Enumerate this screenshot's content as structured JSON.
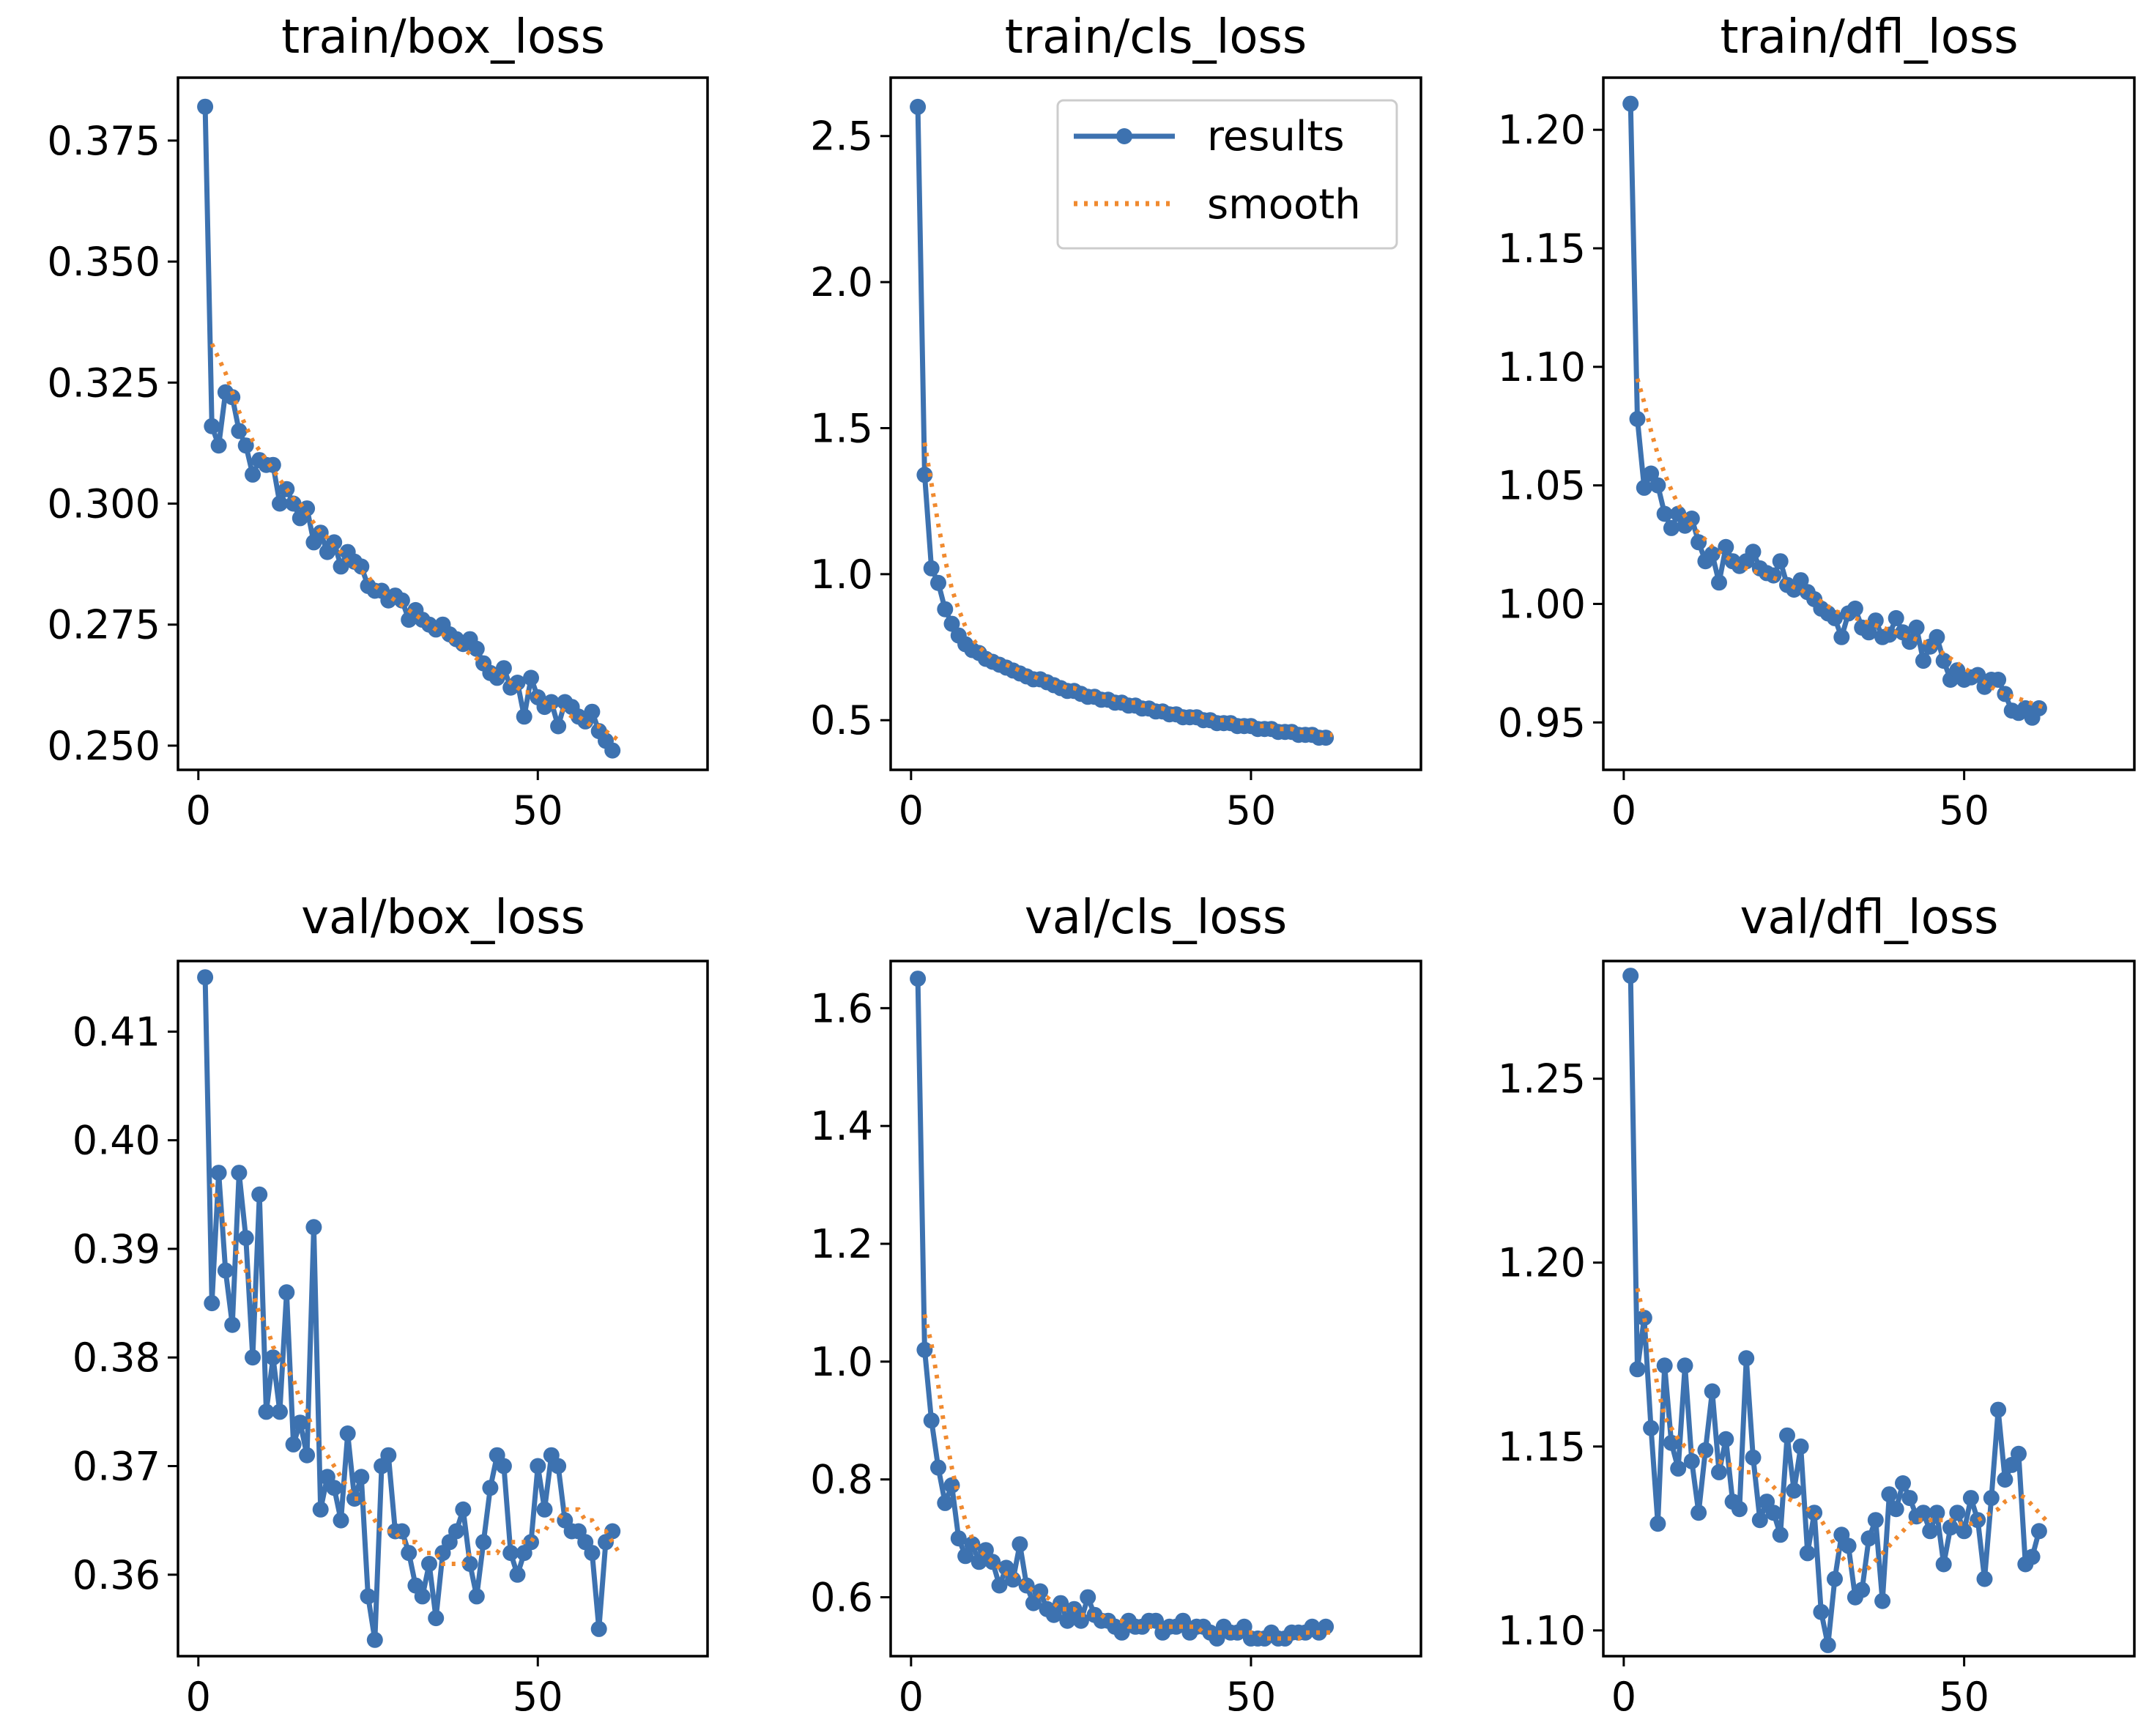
{
  "legend": {
    "results_label": "results",
    "smooth_label": "smooth"
  },
  "colors": {
    "results": "#3d72b0",
    "smooth": "#f08a2f"
  },
  "chart_data": [
    {
      "type": "line",
      "title": "train/box_loss",
      "xlim": [
        -3,
        75
      ],
      "ylim": [
        0.245,
        0.388
      ],
      "xticks": [
        0,
        50
      ],
      "yticks": [
        0.25,
        0.275,
        0.3,
        0.325,
        0.35,
        0.375
      ],
      "ytick_decimals": 3,
      "series": [
        {
          "name": "results",
          "values": [
            0.382,
            0.316,
            0.312,
            0.323,
            0.322,
            0.315,
            0.312,
            0.306,
            0.309,
            0.308,
            0.308,
            0.3,
            0.303,
            0.3,
            0.297,
            0.299,
            0.292,
            0.294,
            0.29,
            0.292,
            0.287,
            0.29,
            0.288,
            0.287,
            0.283,
            0.282,
            0.282,
            0.28,
            0.281,
            0.28,
            0.276,
            0.278,
            0.276,
            0.275,
            0.274,
            0.275,
            0.273,
            0.272,
            0.271,
            0.272,
            0.27,
            0.267,
            0.265,
            0.264,
            0.266,
            0.262,
            0.263,
            0.256,
            0.264,
            0.26,
            0.258,
            0.259,
            0.254,
            0.259,
            0.258,
            0.256,
            0.255,
            0.257,
            0.253,
            0.251,
            0.249
          ]
        },
        {
          "name": "smooth",
          "values": [
            0.333,
            0.33,
            0.327,
            0.323,
            0.319,
            0.316,
            0.313,
            0.311,
            0.309,
            0.307,
            0.305,
            0.303,
            0.301,
            0.3,
            0.298,
            0.296,
            0.294,
            0.293,
            0.291,
            0.29,
            0.288,
            0.287,
            0.286,
            0.285,
            0.283,
            0.282,
            0.281,
            0.28,
            0.279,
            0.278,
            0.277,
            0.276,
            0.275,
            0.274,
            0.273,
            0.272,
            0.271,
            0.27,
            0.269,
            0.268,
            0.267,
            0.266,
            0.265,
            0.264,
            0.263,
            0.262,
            0.261,
            0.261,
            0.26,
            0.259,
            0.258,
            0.258,
            0.257,
            0.256,
            0.256,
            0.255,
            0.254,
            0.254,
            0.253,
            0.252,
            0.251
          ]
        }
      ]
    },
    {
      "type": "line",
      "title": "train/cls_loss",
      "xlim": [
        -3,
        75
      ],
      "ylim": [
        0.33,
        2.7
      ],
      "xticks": [
        0,
        50
      ],
      "yticks": [
        0.5,
        1.0,
        1.5,
        2.0,
        2.5
      ],
      "ytick_decimals": 1,
      "series": [
        {
          "name": "results",
          "values": [
            2.6,
            1.34,
            1.02,
            0.97,
            0.88,
            0.83,
            0.79,
            0.76,
            0.74,
            0.73,
            0.71,
            0.7,
            0.69,
            0.68,
            0.67,
            0.66,
            0.65,
            0.64,
            0.64,
            0.63,
            0.62,
            0.61,
            0.6,
            0.6,
            0.59,
            0.58,
            0.58,
            0.57,
            0.57,
            0.56,
            0.56,
            0.55,
            0.55,
            0.54,
            0.54,
            0.53,
            0.53,
            0.52,
            0.52,
            0.51,
            0.51,
            0.51,
            0.5,
            0.5,
            0.49,
            0.49,
            0.49,
            0.48,
            0.48,
            0.48,
            0.47,
            0.47,
            0.47,
            0.46,
            0.46,
            0.46,
            0.45,
            0.45,
            0.45,
            0.44,
            0.44
          ]
        },
        {
          "name": "smooth",
          "values": [
            1.45,
            1.31,
            1.17,
            1.05,
            0.95,
            0.88,
            0.82,
            0.78,
            0.75,
            0.73,
            0.71,
            0.7,
            0.69,
            0.68,
            0.67,
            0.66,
            0.65,
            0.64,
            0.64,
            0.63,
            0.62,
            0.61,
            0.61,
            0.6,
            0.59,
            0.59,
            0.58,
            0.58,
            0.57,
            0.57,
            0.56,
            0.56,
            0.55,
            0.55,
            0.54,
            0.54,
            0.53,
            0.53,
            0.52,
            0.52,
            0.52,
            0.51,
            0.51,
            0.5,
            0.5,
            0.5,
            0.49,
            0.49,
            0.49,
            0.48,
            0.48,
            0.48,
            0.47,
            0.47,
            0.47,
            0.46,
            0.46,
            0.46,
            0.45,
            0.45,
            0.45
          ]
        }
      ]
    },
    {
      "type": "line",
      "title": "train/dfl_loss",
      "xlim": [
        -3,
        75
      ],
      "ylim": [
        0.93,
        1.222
      ],
      "xticks": [
        0,
        50
      ],
      "yticks": [
        0.95,
        1.0,
        1.05,
        1.1,
        1.15,
        1.2
      ],
      "ytick_decimals": 2,
      "series": [
        {
          "name": "results",
          "values": [
            1.211,
            1.078,
            1.049,
            1.055,
            1.05,
            1.038,
            1.032,
            1.038,
            1.033,
            1.036,
            1.026,
            1.018,
            1.021,
            1.009,
            1.024,
            1.018,
            1.016,
            1.018,
            1.022,
            1.015,
            1.013,
            1.012,
            1.018,
            1.008,
            1.006,
            1.01,
            1.005,
            1.002,
            0.998,
            0.996,
            0.994,
            0.986,
            0.996,
            0.998,
            0.99,
            0.988,
            0.993,
            0.986,
            0.987,
            0.994,
            0.988,
            0.984,
            0.99,
            0.976,
            0.982,
            0.986,
            0.976,
            0.968,
            0.972,
            0.968,
            0.969,
            0.97,
            0.965,
            0.968,
            0.968,
            0.962,
            0.955,
            0.954,
            0.956,
            0.952,
            0.956
          ]
        },
        {
          "name": "smooth",
          "values": [
            1.095,
            1.085,
            1.073,
            1.063,
            1.055,
            1.048,
            1.042,
            1.037,
            1.033,
            1.03,
            1.027,
            1.024,
            1.022,
            1.02,
            1.018,
            1.016,
            1.015,
            1.014,
            1.013,
            1.012,
            1.011,
            1.01,
            1.009,
            1.007,
            1.006,
            1.004,
            1.003,
            1.001,
            0.999,
            0.997,
            0.996,
            0.995,
            0.994,
            0.993,
            0.992,
            0.991,
            0.99,
            0.989,
            0.988,
            0.987,
            0.986,
            0.985,
            0.984,
            0.983,
            0.981,
            0.979,
            0.977,
            0.975,
            0.973,
            0.971,
            0.969,
            0.967,
            0.965,
            0.963,
            0.962,
            0.961,
            0.96,
            0.959,
            0.958,
            0.957,
            0.956
          ]
        }
      ]
    },
    {
      "type": "line",
      "title": "val/box_loss",
      "xlim": [
        -3,
        75
      ],
      "ylim": [
        0.3525,
        0.4165
      ],
      "xticks": [
        0,
        50
      ],
      "yticks": [
        0.36,
        0.37,
        0.38,
        0.39,
        0.4,
        0.41
      ],
      "ytick_decimals": 2,
      "series": [
        {
          "name": "results",
          "values": [
            0.415,
            0.385,
            0.397,
            0.388,
            0.383,
            0.397,
            0.391,
            0.38,
            0.395,
            0.375,
            0.38,
            0.375,
            0.386,
            0.372,
            0.374,
            0.371,
            0.392,
            0.366,
            0.369,
            0.368,
            0.365,
            0.373,
            0.367,
            0.369,
            0.358,
            0.354,
            0.37,
            0.371,
            0.364,
            0.364,
            0.362,
            0.359,
            0.358,
            0.361,
            0.356,
            0.362,
            0.363,
            0.364,
            0.366,
            0.361,
            0.358,
            0.363,
            0.368,
            0.371,
            0.37,
            0.362,
            0.36,
            0.362,
            0.363,
            0.37,
            0.366,
            0.371,
            0.37,
            0.365,
            0.364,
            0.364,
            0.363,
            0.362,
            0.355,
            0.363,
            0.364
          ]
        },
        {
          "name": "smooth",
          "values": [
            0.396,
            0.394,
            0.392,
            0.391,
            0.389,
            0.388,
            0.386,
            0.384,
            0.383,
            0.381,
            0.38,
            0.379,
            0.378,
            0.376,
            0.375,
            0.373,
            0.372,
            0.371,
            0.37,
            0.369,
            0.368,
            0.367,
            0.367,
            0.366,
            0.365,
            0.364,
            0.364,
            0.364,
            0.363,
            0.363,
            0.363,
            0.362,
            0.362,
            0.362,
            0.361,
            0.361,
            0.361,
            0.361,
            0.362,
            0.362,
            0.362,
            0.362,
            0.362,
            0.363,
            0.363,
            0.363,
            0.363,
            0.363,
            0.364,
            0.364,
            0.365,
            0.365,
            0.366,
            0.366,
            0.366,
            0.365,
            0.365,
            0.364,
            0.364,
            0.363,
            0.362
          ]
        }
      ]
    },
    {
      "type": "line",
      "title": "val/cls_loss",
      "xlim": [
        -3,
        75
      ],
      "ylim": [
        0.5,
        1.68
      ],
      "xticks": [
        0,
        50
      ],
      "yticks": [
        0.6,
        0.8,
        1.0,
        1.2,
        1.4,
        1.6
      ],
      "ytick_decimals": 1,
      "series": [
        {
          "name": "results",
          "values": [
            1.65,
            1.02,
            0.9,
            0.82,
            0.76,
            0.79,
            0.7,
            0.67,
            0.69,
            0.66,
            0.68,
            0.66,
            0.62,
            0.65,
            0.63,
            0.69,
            0.62,
            0.59,
            0.61,
            0.58,
            0.57,
            0.59,
            0.56,
            0.58,
            0.56,
            0.6,
            0.57,
            0.56,
            0.56,
            0.55,
            0.54,
            0.56,
            0.55,
            0.55,
            0.56,
            0.56,
            0.54,
            0.55,
            0.55,
            0.56,
            0.54,
            0.55,
            0.55,
            0.54,
            0.53,
            0.55,
            0.54,
            0.54,
            0.55,
            0.53,
            0.53,
            0.53,
            0.54,
            0.53,
            0.53,
            0.54,
            0.54,
            0.54,
            0.55,
            0.54,
            0.55
          ]
        },
        {
          "name": "smooth",
          "values": [
            1.08,
            1.03,
            0.96,
            0.88,
            0.82,
            0.77,
            0.73,
            0.7,
            0.68,
            0.67,
            0.66,
            0.65,
            0.64,
            0.64,
            0.63,
            0.62,
            0.61,
            0.6,
            0.6,
            0.59,
            0.58,
            0.58,
            0.58,
            0.57,
            0.57,
            0.57,
            0.57,
            0.56,
            0.56,
            0.56,
            0.55,
            0.55,
            0.55,
            0.55,
            0.55,
            0.55,
            0.55,
            0.55,
            0.55,
            0.55,
            0.55,
            0.54,
            0.54,
            0.54,
            0.54,
            0.54,
            0.54,
            0.54,
            0.54,
            0.54,
            0.53,
            0.53,
            0.53,
            0.53,
            0.53,
            0.53,
            0.54,
            0.54,
            0.54,
            0.54,
            0.54
          ]
        }
      ]
    },
    {
      "type": "line",
      "title": "val/dfl_loss",
      "xlim": [
        -3,
        75
      ],
      "ylim": [
        1.093,
        1.282
      ],
      "xticks": [
        0,
        50
      ],
      "yticks": [
        1.1,
        1.15,
        1.2,
        1.25
      ],
      "ytick_decimals": 2,
      "series": [
        {
          "name": "results",
          "values": [
            1.278,
            1.171,
            1.185,
            1.155,
            1.129,
            1.172,
            1.151,
            1.144,
            1.172,
            1.146,
            1.132,
            1.149,
            1.165,
            1.143,
            1.152,
            1.135,
            1.133,
            1.174,
            1.147,
            1.13,
            1.135,
            1.132,
            1.126,
            1.153,
            1.138,
            1.15,
            1.121,
            1.132,
            1.105,
            1.096,
            1.114,
            1.126,
            1.123,
            1.109,
            1.111,
            1.125,
            1.13,
            1.108,
            1.137,
            1.133,
            1.14,
            1.136,
            1.131,
            1.132,
            1.127,
            1.132,
            1.118,
            1.128,
            1.132,
            1.127,
            1.136,
            1.13,
            1.114,
            1.136,
            1.16,
            1.141,
            1.145,
            1.148,
            1.118,
            1.12,
            1.127
          ]
        },
        {
          "name": "smooth",
          "values": [
            1.193,
            1.185,
            1.176,
            1.166,
            1.158,
            1.155,
            1.152,
            1.15,
            1.149,
            1.148,
            1.147,
            1.146,
            1.146,
            1.145,
            1.145,
            1.144,
            1.143,
            1.143,
            1.142,
            1.141,
            1.139,
            1.137,
            1.136,
            1.135,
            1.134,
            1.133,
            1.132,
            1.13,
            1.127,
            1.123,
            1.12,
            1.118,
            1.117,
            1.116,
            1.117,
            1.119,
            1.121,
            1.123,
            1.125,
            1.127,
            1.129,
            1.13,
            1.13,
            1.13,
            1.13,
            1.13,
            1.13,
            1.129,
            1.129,
            1.129,
            1.13,
            1.131,
            1.132,
            1.133,
            1.135,
            1.136,
            1.137,
            1.136,
            1.134,
            1.132,
            1.13
          ]
        }
      ]
    }
  ]
}
